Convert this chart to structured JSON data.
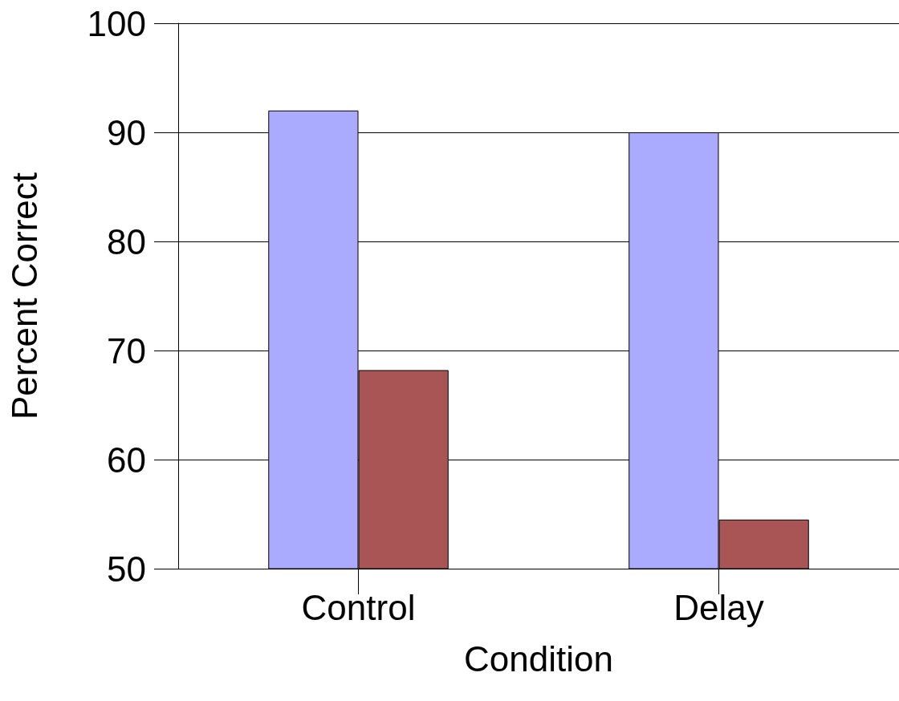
{
  "chart_data": {
    "type": "bar",
    "xlabel": "Condition",
    "ylabel": "Percent Correct",
    "categories": [
      "Control",
      "Delay"
    ],
    "series": [
      {
        "color": "#aaaaff",
        "values": [
          92,
          90
        ]
      },
      {
        "color": "#aa5555",
        "values": [
          68.2,
          54.5
        ]
      }
    ],
    "ylim": [
      50,
      100
    ],
    "yticks": [
      50,
      60,
      70,
      80,
      90,
      100
    ],
    "grid": "y"
  }
}
